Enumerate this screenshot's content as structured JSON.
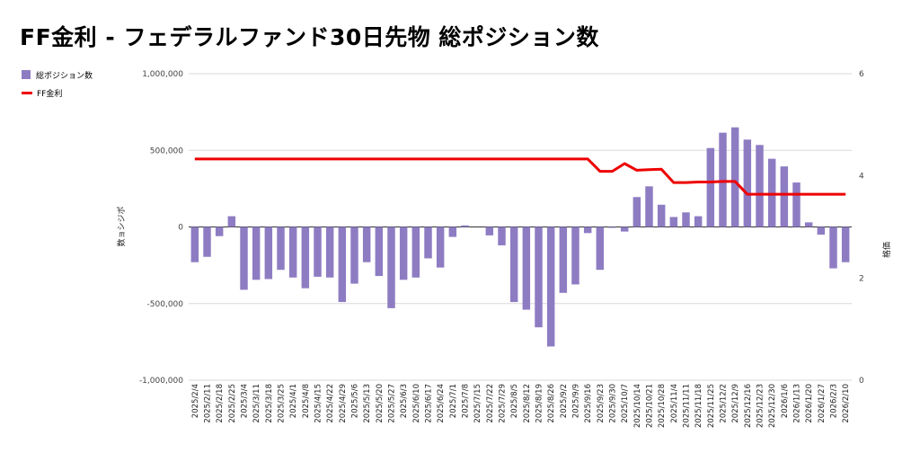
{
  "chart_data": {
    "type": "bar",
    "title": "FF金利 - フェデラルファンド30日先物 総ポジション数",
    "ylabel_left": "数ョシジポ",
    "ylabel_right": "格価",
    "ylim_left": [
      -1000000,
      1000000
    ],
    "ylim_right": [
      0,
      6
    ],
    "yticks_left": [
      "1,000,000",
      "500,000",
      "0",
      "-500,000",
      "-1,000,000"
    ],
    "yticks_right": [
      "6",
      "4",
      "2",
      "0"
    ],
    "legend": "top-left",
    "categories": [
      "2025/2/4",
      "2025/2/11",
      "2025/2/18",
      "2025/2/25",
      "2025/3/4",
      "2025/3/11",
      "2025/3/18",
      "2025/3/25",
      "2025/4/1",
      "2025/4/8",
      "2025/4/15",
      "2025/4/22",
      "2025/4/29",
      "2025/5/6",
      "2025/5/13",
      "2025/5/20",
      "2025/5/27",
      "2025/6/3",
      "2025/6/10",
      "2025/6/17",
      "2025/6/24",
      "2025/7/1",
      "2025/7/8",
      "2025/7/15",
      "2025/7/22",
      "2025/7/29",
      "2025/8/5",
      "2025/8/12",
      "2025/8/19",
      "2025/8/26",
      "2025/9/2",
      "2025/9/9",
      "2025/9/16",
      "2025/9/23",
      "2025/9/30",
      "2025/10/7",
      "2025/10/14",
      "2025/10/21",
      "2025/10/28",
      "2025/11/4",
      "2025/11/11",
      "2025/11/18",
      "2025/11/25",
      "2025/12/2",
      "2025/12/9",
      "2025/12/16",
      "2025/12/23",
      "2025/12/30",
      "2026/1/6",
      "2026/1/13",
      "2026/1/20",
      "2026/1/27",
      "2026/2/3",
      "2026/2/10"
    ],
    "series": [
      {
        "name": "総ポジション数",
        "type": "bar",
        "axis": "left",
        "color": "#8e7cc3",
        "values": [
          -230000,
          -195000,
          -60000,
          70000,
          -410000,
          -345000,
          -340000,
          -280000,
          -330000,
          -400000,
          -325000,
          -330000,
          -490000,
          -370000,
          -230000,
          -320000,
          -530000,
          -345000,
          -330000,
          -205000,
          -265000,
          -65000,
          10000,
          0,
          -55000,
          -120000,
          -490000,
          -540000,
          -655000,
          -780000,
          -430000,
          -375000,
          -40000,
          -280000,
          -5000,
          -30000,
          195000,
          265000,
          145000,
          65000,
          95000,
          70000,
          515000,
          615000,
          650000,
          570000,
          535000,
          445000,
          395000,
          290000,
          30000,
          -50000,
          -270000,
          -230000
        ]
      },
      {
        "name": "FF金利",
        "type": "line",
        "axis": "right",
        "color": "#ee0000",
        "values": [
          4.33,
          4.33,
          4.33,
          4.33,
          4.33,
          4.33,
          4.33,
          4.33,
          4.33,
          4.33,
          4.33,
          4.33,
          4.33,
          4.33,
          4.33,
          4.33,
          4.33,
          4.33,
          4.33,
          4.33,
          4.33,
          4.33,
          4.33,
          4.33,
          4.33,
          4.33,
          4.33,
          4.33,
          4.33,
          4.33,
          4.33,
          4.33,
          4.33,
          4.09,
          4.09,
          4.24,
          4.11,
          4.12,
          4.13,
          3.87,
          3.87,
          3.88,
          3.88,
          3.89,
          3.89,
          3.64,
          3.64,
          3.64,
          3.64,
          3.64,
          3.64,
          3.64,
          3.64,
          3.64
        ]
      }
    ]
  }
}
